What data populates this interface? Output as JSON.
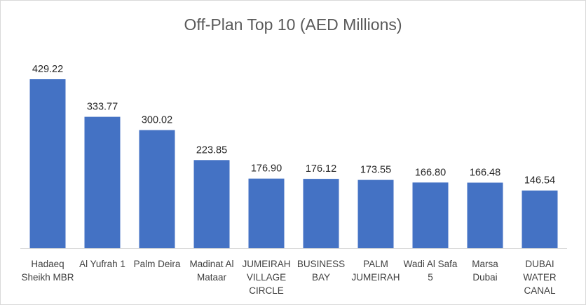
{
  "chart_data": {
    "type": "bar",
    "title": "Off-Plan Top 10 (AED Millions)",
    "xlabel": "",
    "ylabel": "",
    "grid": false,
    "legend": "none",
    "ylim": [
      0,
      429.22
    ],
    "bar_color": "#4472C4",
    "axis_color": "#d9d9d9",
    "categories": [
      [
        "Hadaeq",
        "Sheikh MBR"
      ],
      [
        "Al Yufrah 1"
      ],
      [
        "Palm Deira"
      ],
      [
        "Madinat Al",
        "Mataar"
      ],
      [
        "JUMEIRAH",
        "VILLAGE",
        "CIRCLE"
      ],
      [
        "BUSINESS",
        "BAY"
      ],
      [
        "PALM",
        "JUMEIRAH"
      ],
      [
        "Wadi Al Safa",
        "5"
      ],
      [
        "Marsa",
        "Dubai"
      ],
      [
        "DUBAI",
        "WATER",
        "CANAL"
      ]
    ],
    "values": [
      429.22,
      333.77,
      300.02,
      223.85,
      176.9,
      176.12,
      173.55,
      166.8,
      166.48,
      146.54
    ],
    "value_labels": [
      "429.22",
      "333.77",
      "300.02",
      "223.85",
      "176.90",
      "176.12",
      "173.55",
      "166.80",
      "166.48",
      "146.54"
    ]
  }
}
